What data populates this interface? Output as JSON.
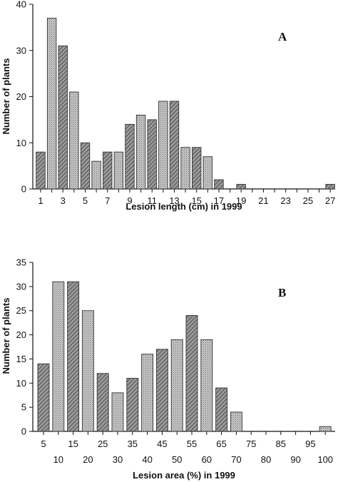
{
  "chart_data": [
    {
      "type": "bar",
      "panel_label": "A",
      "xlabel": "Lesion length (cm) in 1999",
      "ylabel": "Number of plants",
      "ylim": [
        0,
        40
      ],
      "yticks": [
        0,
        10,
        20,
        30,
        40
      ],
      "categories": [
        1,
        2,
        3,
        4,
        5,
        6,
        7,
        8,
        9,
        10,
        11,
        12,
        13,
        14,
        15,
        16,
        17,
        18,
        19,
        20,
        21,
        22,
        23,
        24,
        25,
        26,
        27
      ],
      "values": [
        8,
        37,
        31,
        21,
        10,
        6,
        8,
        8,
        14,
        16,
        15,
        19,
        19,
        9,
        9,
        7,
        2,
        0,
        1,
        0,
        0,
        0,
        0,
        0,
        0,
        0,
        1
      ],
      "tick_labels": [
        "1",
        "3",
        "5",
        "7",
        "9",
        "11",
        "13",
        "15",
        "17",
        "19",
        "21",
        "23",
        "25",
        "27"
      ],
      "grid": false
    },
    {
      "type": "bar",
      "panel_label": "B",
      "xlabel": "Lesion area (%) in 1999",
      "ylabel": "Number of plants",
      "ylim": [
        0,
        35
      ],
      "yticks": [
        0,
        5,
        10,
        15,
        20,
        25,
        30,
        35
      ],
      "categories": [
        5,
        10,
        15,
        20,
        25,
        30,
        35,
        40,
        45,
        50,
        55,
        60,
        65,
        70,
        75,
        80,
        85,
        90,
        95,
        100
      ],
      "values": [
        14,
        31,
        31,
        25,
        12,
        8,
        11,
        16,
        17,
        19,
        24,
        19,
        9,
        4,
        0,
        0,
        0,
        0,
        0,
        1
      ],
      "tick_labels_upper": [
        "5",
        "15",
        "25",
        "35",
        "45",
        "55",
        "65",
        "75",
        "85",
        "95"
      ],
      "tick_labels_lower": [
        "10",
        "20",
        "30",
        "40",
        "50",
        "60",
        "70",
        "80",
        "90",
        "100"
      ],
      "grid": false
    }
  ]
}
